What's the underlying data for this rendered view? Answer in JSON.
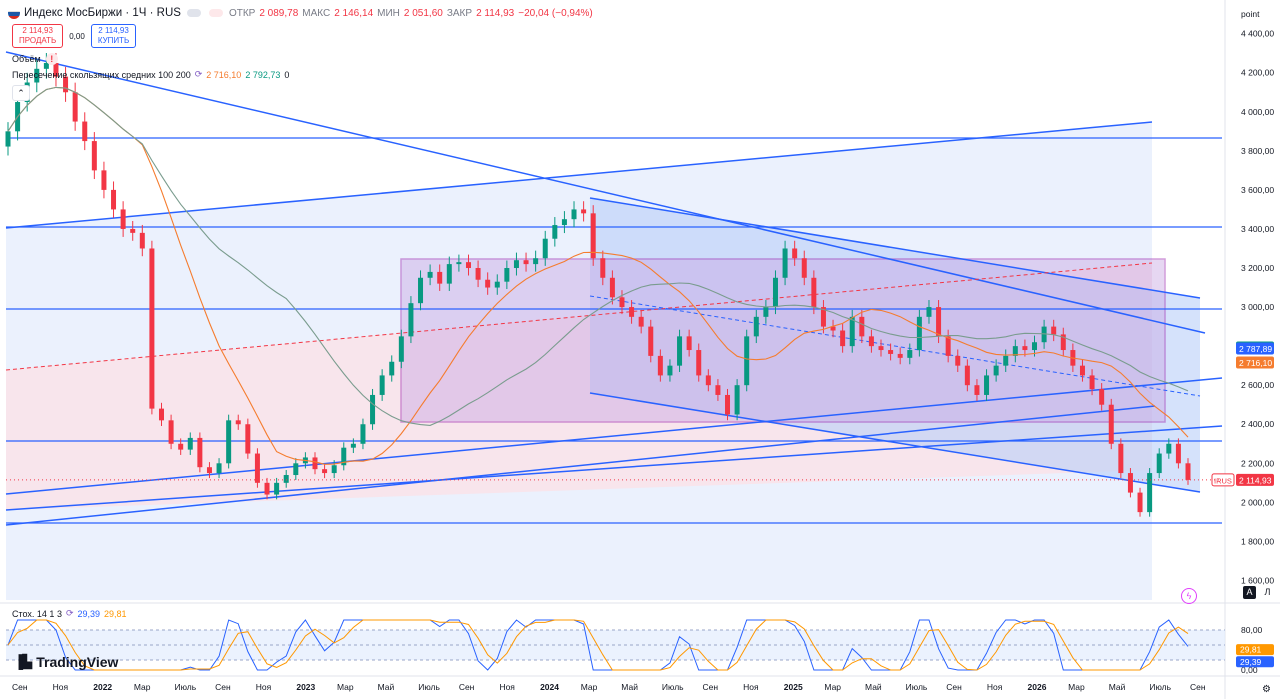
{
  "header": {
    "symbol": "Индекс МосБиржи · 1Ч · RUS",
    "open_label": "ОТКР",
    "open": "2 089,78",
    "high_label": "МАКС",
    "high": "2 146,14",
    "low_label": "МИН",
    "low": "2 051,60",
    "close_label": "ЗАКР",
    "close": "2 114,93",
    "change": "−20,04 (−0,94%)"
  },
  "trade": {
    "sell_price": "2 114,93",
    "sell_label": "ПРОДАТЬ",
    "spread": "0,00",
    "buy_price": "2 114,93",
    "buy_label": "КУПИТЬ"
  },
  "indicators": {
    "volume": "Объём",
    "ma_label": "Пересечение скользящих средних 100 200",
    "ma_fast": "2 716,10",
    "ma_slow": "2 792,73",
    "ma_extra": "0",
    "stoch_label": "Стох. 14 1 3",
    "stoch_k": "29,39",
    "stoch_d": "29,81"
  },
  "logo": "TradingView",
  "buttons": {
    "auto": "A",
    "log": "Л"
  },
  "colors": {
    "up": "#089981",
    "down": "#f23645",
    "line": "#2962ff",
    "ma_fast": "#f57c2e",
    "ma_slow": "#7a9c8e",
    "stoch_k": "#2962ff",
    "stoch_d": "#ff9800",
    "purple": "#9c27b0"
  },
  "chart_data": {
    "type": "candlestick",
    "symbol": "IRUS",
    "unit_label": "point",
    "y_ticks": [
      "4 400,00",
      "4 200,00",
      "4 000,00",
      "3 800,00",
      "3 600,00",
      "3 400,00",
      "3 200,00",
      "3 000,00",
      "2 800,00",
      "2 600,00",
      "2 400,00",
      "2 200,00",
      "2 000,00",
      "1 800,00",
      "1 600,00"
    ],
    "y_tick_values": [
      4400,
      4200,
      4000,
      3800,
      3600,
      3400,
      3200,
      3000,
      2800,
      2600,
      2400,
      2200,
      2000,
      1800,
      1600
    ],
    "ylim": [
      1500,
      4470
    ],
    "x_labels": [
      "Сен",
      "Ноя",
      "2022",
      "Мар",
      "Июль",
      "Сен",
      "Ноя",
      "2023",
      "Мар",
      "Май",
      "Июль",
      "Сен",
      "Ноя",
      "2024",
      "Мар",
      "Май",
      "Июль",
      "Сен",
      "Ноя",
      "2025",
      "Мар",
      "Май",
      "Июль",
      "Сен",
      "Ноя",
      "2026",
      "Мар",
      "Май",
      "Июль",
      "Сен"
    ],
    "last_price_label": "2 114,93",
    "last_price": 2114.93,
    "ma_fast_label": "2 716,10",
    "ma_slow_label": "2 792,73",
    "ma_mid_label": "2 787,89",
    "ma_fast_last": 2716.1,
    "ma_slow_last": 2792.73,
    "ma_mid_last": 2787.89,
    "series": [
      {
        "name": "IRUS",
        "type": "candles",
        "close_path": [
          3900,
          4050,
          4150,
          4220,
          4250,
          4180,
          4100,
          3950,
          3850,
          3700,
          3600,
          3500,
          3400,
          3380,
          3300,
          2480,
          2420,
          2300,
          2270,
          2330,
          2180,
          2150,
          2200,
          2420,
          2400,
          2250,
          2100,
          2040,
          2100,
          2140,
          2200,
          2230,
          2170,
          2150,
          2190,
          2280,
          2300,
          2400,
          2550,
          2650,
          2720,
          2850,
          3020,
          3150,
          3180,
          3120,
          3220,
          3230,
          3200,
          3140,
          3100,
          3130,
          3200,
          3240,
          3220,
          3250,
          3350,
          3420,
          3450,
          3500,
          3480,
          3250,
          3150,
          3050,
          3000,
          2950,
          2900,
          2750,
          2650,
          2700,
          2850,
          2780,
          2650,
          2600,
          2550,
          2450,
          2600,
          2850,
          2950,
          3000,
          3150,
          3300,
          3250,
          3150,
          3000,
          2900,
          2880,
          2800,
          2950,
          2850,
          2800,
          2780,
          2760,
          2740,
          2780,
          2950,
          3000,
          2850,
          2750,
          2700,
          2600,
          2550,
          2650,
          2700,
          2750,
          2800,
          2780,
          2820,
          2900,
          2860,
          2780,
          2700,
          2650,
          2580,
          2500,
          2300,
          2150,
          2050,
          1950,
          2150,
          2250,
          2300,
          2200,
          2114.93
        ]
      }
    ],
    "stochastic": {
      "k_label": "29,39",
      "d_label": "29,81",
      "ticks": [
        "80,00",
        "0,00"
      ],
      "tick_values": [
        80,
        0
      ],
      "k_last": 29.39,
      "d_last": 29.81
    }
  }
}
